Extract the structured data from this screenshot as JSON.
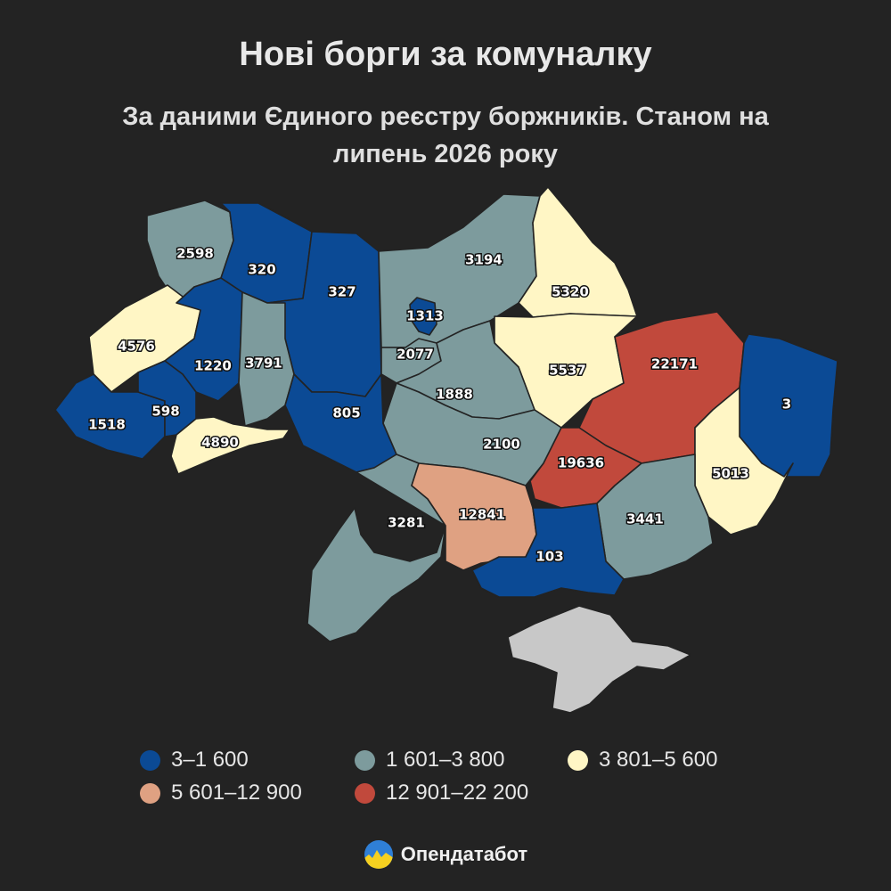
{
  "header": {
    "title": "Нові борги за комуналку",
    "subtitle": "За даними Єдиного реєстру боржників. Станом на липень 2026 року"
  },
  "colors": {
    "background": "#232323",
    "class_1": "#0b4a95",
    "class_2": "#7d9b9d",
    "class_3": "#fff6c5",
    "class_4": "#dfa182",
    "class_5": "#c1493c",
    "no_data": "#c8c8c8"
  },
  "legend": [
    {
      "label": "3–1 600",
      "color": "#0b4a95"
    },
    {
      "label": "1 601–3 800",
      "color": "#7d9b9d"
    },
    {
      "label": "3 801–5 600",
      "color": "#fff6c5"
    },
    {
      "label": "5 601–12 900",
      "color": "#dfa182"
    },
    {
      "label": "12 901–22 200",
      "color": "#c1493c"
    }
  ],
  "regions": [
    {
      "id": "volyn",
      "value": "2598",
      "class": 2
    },
    {
      "id": "rivne",
      "value": "320",
      "class": 1
    },
    {
      "id": "zhytomyr",
      "value": "327",
      "class": 1
    },
    {
      "id": "kyiv-oblast",
      "value": "3194",
      "class": 2
    },
    {
      "id": "kyiv-city",
      "value": "1313",
      "class": 1
    },
    {
      "id": "chernihiv",
      "value": "5320",
      "class": 3
    },
    {
      "id": "sumy",
      "value": "5537",
      "class": 3
    },
    {
      "id": "kharkiv",
      "value": "22171",
      "class": 5
    },
    {
      "id": "luhansk",
      "value": "3",
      "class": 1
    },
    {
      "id": "lviv",
      "value": "4576",
      "class": 3
    },
    {
      "id": "ternopil",
      "value": "1220",
      "class": 1
    },
    {
      "id": "khmelnytskyi",
      "value": "3791",
      "class": 2
    },
    {
      "id": "vinnytsia",
      "value": "805",
      "class": 1
    },
    {
      "id": "cherkasy",
      "value": "2077",
      "class": 2
    },
    {
      "id": "poltava",
      "value": "1888",
      "class": 2
    },
    {
      "id": "zakarpattia",
      "value": "1518",
      "class": 1
    },
    {
      "id": "ivano-frankivsk",
      "value": "598",
      "class": 1
    },
    {
      "id": "chernivtsi",
      "value": "4890",
      "class": 3
    },
    {
      "id": "kirovohrad",
      "value": "2100",
      "class": 2
    },
    {
      "id": "dnipropetrovsk",
      "value": "19636",
      "class": 5
    },
    {
      "id": "donetsk",
      "value": "5013",
      "class": 3
    },
    {
      "id": "odesa",
      "value": "3281",
      "class": 2
    },
    {
      "id": "mykolaiv",
      "value": "12841",
      "class": 4
    },
    {
      "id": "zaporizhzhia",
      "value": "3441",
      "class": 2
    },
    {
      "id": "kherson",
      "value": "103",
      "class": 1
    },
    {
      "id": "crimea",
      "value": "",
      "class": 0
    }
  ],
  "brand": {
    "name": "Опендатабот"
  }
}
